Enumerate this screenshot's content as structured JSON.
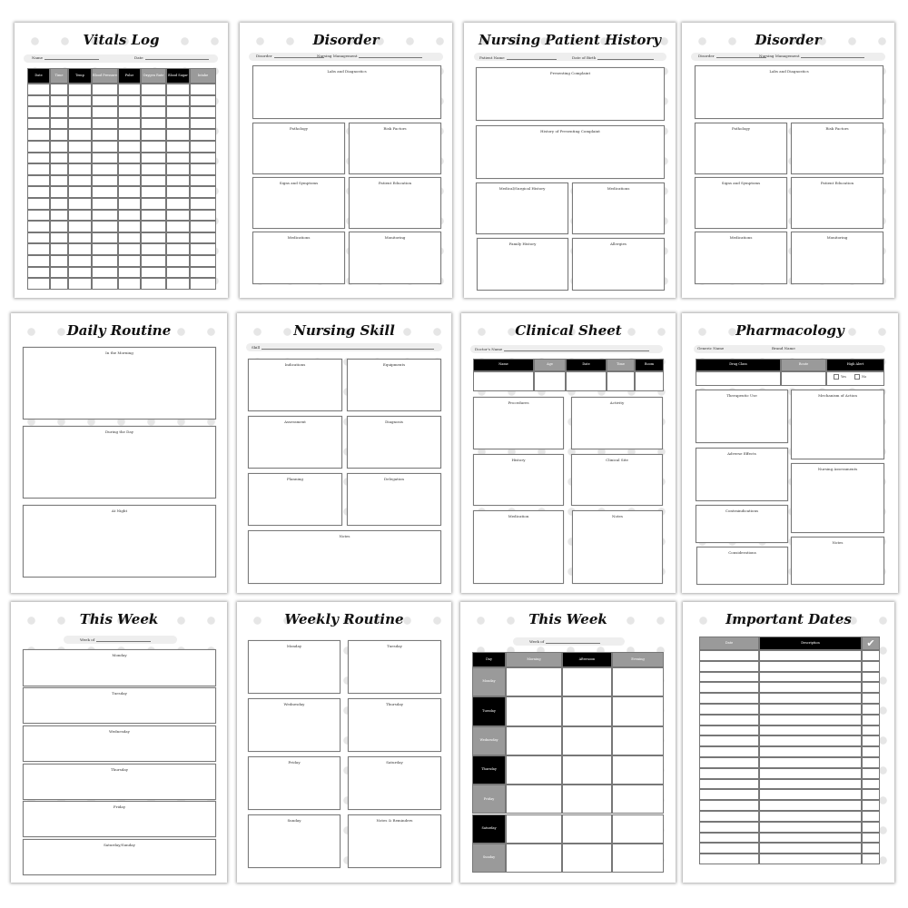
{
  "pages": [
    {
      "title": "Vitals Log",
      "fields": [
        "Name",
        "Date"
      ],
      "table_headers": [
        "Date",
        "Time",
        "Temp",
        "Blood Pressure",
        "Pulse",
        "Oxygen Rate",
        "Blood Sugar",
        "Intake"
      ]
    },
    {
      "title": "Disorder",
      "fields": [
        "Disorder",
        "Nursing Management"
      ],
      "boxes": [
        "Labs and Diagnostics",
        "Pathology",
        "Risk Factors",
        "Signs and Symptoms",
        "Patient Education",
        "Medications",
        "Monitoring"
      ]
    },
    {
      "title": "Nursing Patient History",
      "fields": [
        "Patient Name",
        "Date of Birth"
      ],
      "boxes": [
        "Presenting Complaint",
        "History of Presenting Complaint",
        "Medical/Surgical History",
        "Medications",
        "Family History",
        "Allergies"
      ]
    },
    {
      "title": "Disorder",
      "fields": [
        "Disorder",
        "Nursing Management"
      ],
      "boxes": [
        "Labs and Diagnostics",
        "Pathology",
        "Risk Factors",
        "Signs and Symptoms",
        "Patient Education",
        "Medications",
        "Monitoring"
      ]
    },
    {
      "title": "Daily Routine",
      "boxes": [
        "In the Morning",
        "During the Day",
        "At Night"
      ]
    },
    {
      "title": "Nursing Skill",
      "fields": [
        "Skill"
      ],
      "boxes": [
        "Indications",
        "Equipments",
        "Assessment",
        "Diagnosis",
        "Planning",
        "Delegation",
        "Notes"
      ]
    },
    {
      "title": "Clinical Sheet",
      "fields": [
        "Doctor's Name"
      ],
      "table_headers": [
        "Name",
        "Age",
        "Date",
        "Time",
        "Room"
      ],
      "boxes": [
        "Procedures",
        "Activity",
        "History",
        "Clinical Site",
        "Medication",
        "Notes"
      ]
    },
    {
      "title": "Pharmacology",
      "fields": [
        "Generic Name",
        "Brand Name"
      ],
      "table_headers": [
        "Drug Class",
        "Route",
        "High Alert"
      ],
      "checkboxes": [
        "Yes",
        "No"
      ],
      "boxes": [
        "Therapeutic Use",
        "Mechanism of Action",
        "Adverse Effects",
        "Nursing Assessments",
        "Contraindications",
        "Notes",
        "Considerations"
      ]
    },
    {
      "title": "This Week",
      "fields": [
        "Week of"
      ],
      "boxes": [
        "Monday",
        "Tuesday",
        "Wednesday",
        "Thursday",
        "Friday",
        "Saturday/Sunday"
      ]
    },
    {
      "title": "Weekly Routine",
      "boxes": [
        "Monday",
        "Tuesday",
        "Wednesday",
        "Thursday",
        "Friday",
        "Saturday",
        "Sunday",
        "Notes & Reminders"
      ]
    },
    {
      "title": "This Week",
      "fields": [
        "Week of"
      ],
      "table_headers": [
        "Day",
        "Morning",
        "Afternoon",
        "Evening"
      ],
      "days": [
        "Monday",
        "Tuesday",
        "Wednesday",
        "Thursday",
        "Friday",
        "Saturday",
        "Sunday"
      ]
    },
    {
      "title": "Important Dates",
      "table_headers": [
        "Date",
        "Description"
      ],
      "check_icon": "checkmark-icon"
    }
  ],
  "colors": {
    "black": "#000000",
    "gray": "#9a9a9a",
    "dots": "#e6e6e6"
  }
}
